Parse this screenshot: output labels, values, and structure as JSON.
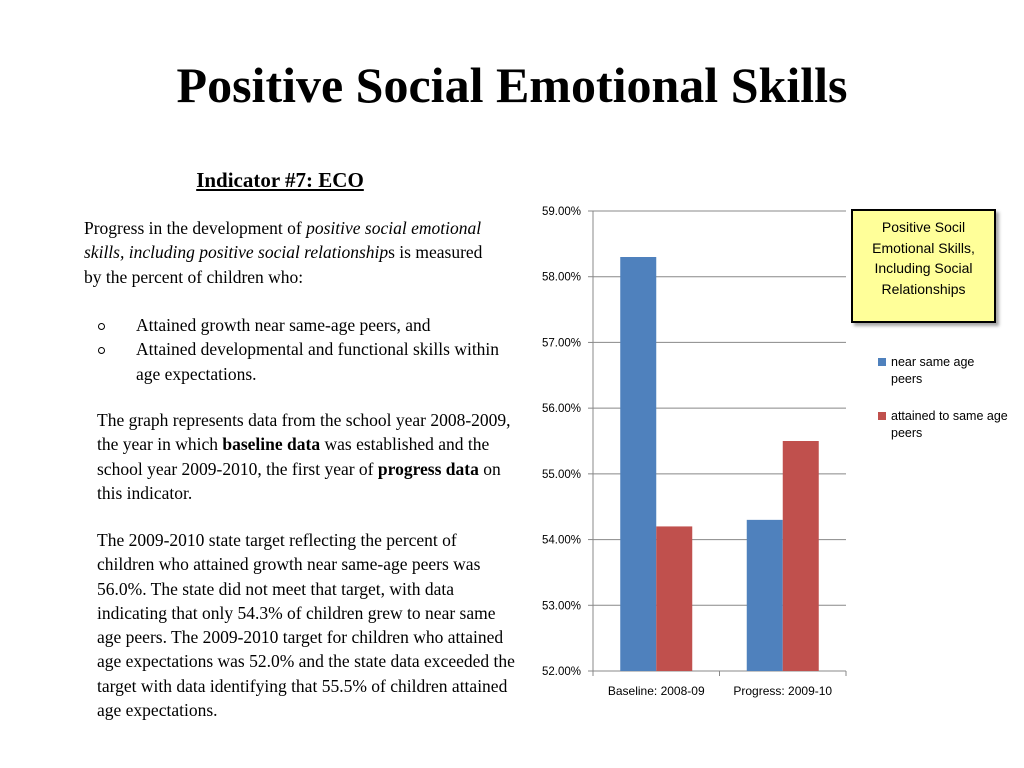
{
  "slide": {
    "title": "Positive Social Emotional Skills",
    "subtitle": "Indicator #7: ECO",
    "intro": {
      "before": "Progress in the development of ",
      "italic": "positive social emotional skills, including positive social relationship",
      "after": "s is measured by the percent of children who:"
    },
    "bullets": [
      "Attained growth near same-age peers, and",
      "Attained developmental and functional skills within age expectations."
    ],
    "paragraph2": {
      "part1": "The graph represents data from the school year 2008-2009, the year in which ",
      "bold1": "baseline data",
      "part2": " was established and the school year 2009-2010, the first year of ",
      "bold2": "progress data",
      "part3": " on this indicator."
    },
    "paragraph3": "The 2009-2010 state target reflecting the percent of children who attained growth near same-age peers was 56.0%. The state did not meet that target, with data indicating that only 54.3% of children grew to near same age peers. The 2009-2010 target for children who attained age expectations was 52.0% and the state data exceeded the target with data identifying that 55.5% of children attained age expectations."
  },
  "chart_data": {
    "type": "bar",
    "title": "Positive Socil Emotional Skills, Including Social Relationships",
    "categories": [
      "Baseline: 2008-09",
      "Progress: 2009-10"
    ],
    "series": [
      {
        "name": "near same age peers",
        "color": "#4f81bd",
        "values": [
          58.3,
          54.3
        ]
      },
      {
        "name": "attained to same age peers",
        "color": "#c0504d",
        "values": [
          54.2,
          55.5
        ]
      }
    ],
    "ylim": [
      52,
      59
    ],
    "yticks": [
      "52.00%",
      "53.00%",
      "54.00%",
      "55.00%",
      "56.00%",
      "57.00%",
      "58.00%",
      "59.00%"
    ],
    "grid": true,
    "legend_position": "right",
    "title_box_color": "#ffff99"
  }
}
